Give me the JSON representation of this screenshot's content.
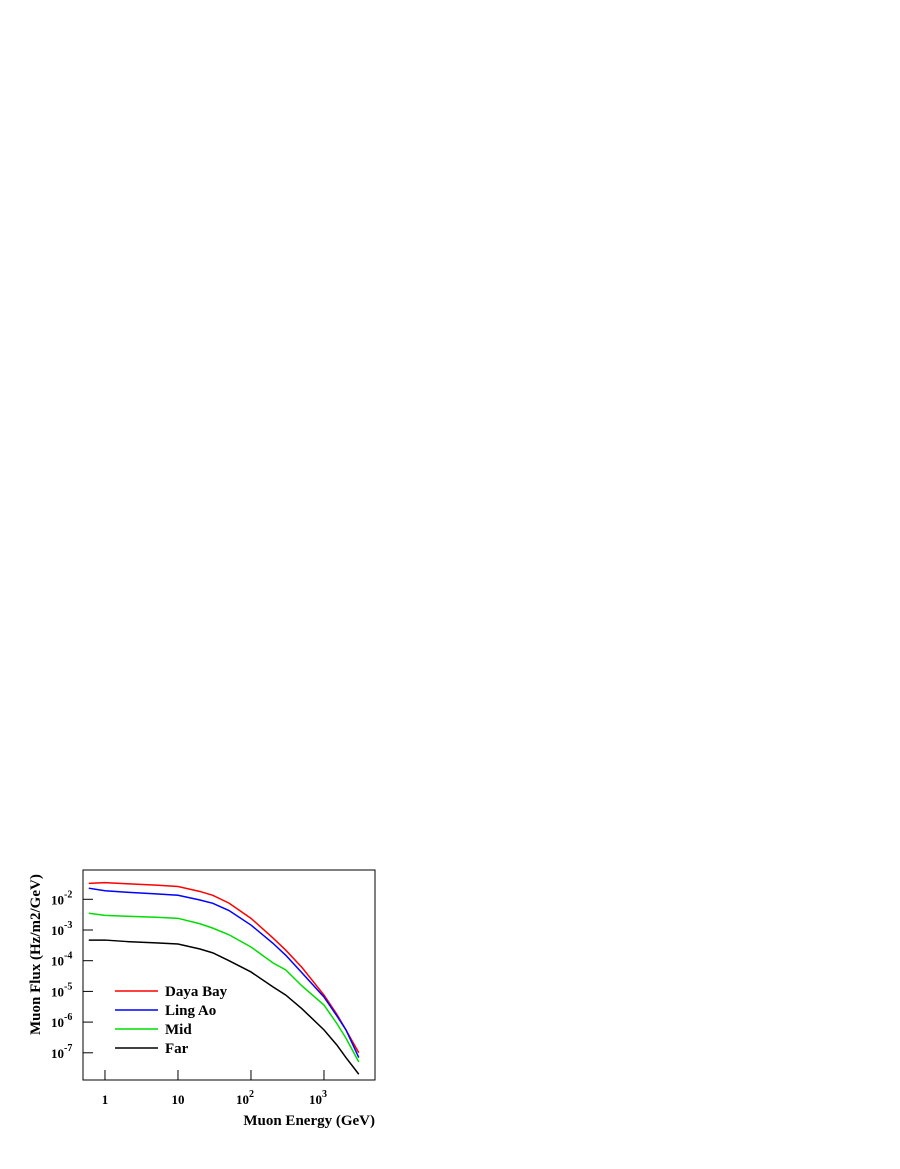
{
  "chart_data": {
    "type": "line",
    "x_label": "Muon Energy (GeV)",
    "y_label": "Muon Flux (Hz/m2/GeV)",
    "log_x": true,
    "log_y": true,
    "xlim": [
      0.5,
      5000
    ],
    "ylim": [
      1.3e-08,
      0.09
    ],
    "xticks": [
      1,
      10,
      {
        "value": 100,
        "label": "102"
      },
      {
        "value": 1000,
        "label": "103"
      }
    ],
    "yticks": [
      {
        "value": 0.01,
        "label": "10-2"
      },
      {
        "value": 0.001,
        "label": "10-3"
      },
      {
        "value": 0.0001,
        "label": "10-4"
      },
      {
        "value": 1e-05,
        "label": "10-5"
      },
      {
        "value": 1e-06,
        "label": "10-6"
      },
      {
        "value": 1e-07,
        "label": "10-7"
      }
    ],
    "legend": "bottom-left",
    "x": [
      0.6,
      1,
      2,
      5,
      10,
      20,
      30,
      50,
      100,
      200,
      300,
      500,
      1000,
      1500,
      2000,
      3000
    ],
    "series": [
      {
        "name": "Daya Bay",
        "color": "#ff0000",
        "values": [
          0.033,
          0.035,
          0.032,
          0.029,
          0.026,
          0.018,
          0.0135,
          0.0075,
          0.0024,
          0.00055,
          0.00022,
          6e-05,
          7.6e-06,
          1.8e-06,
          5.6e-07,
          1e-07
        ]
      },
      {
        "name": "Ling Ao",
        "color": "#0000ff",
        "values": [
          0.023,
          0.019,
          0.017,
          0.015,
          0.0135,
          0.0095,
          0.0074,
          0.0043,
          0.00145,
          0.00037,
          0.00015,
          4e-05,
          6.6e-06,
          1.6e-06,
          5.6e-07,
          7e-08
        ]
      },
      {
        "name": "Mid",
        "color": "#00dd00",
        "values": [
          0.0035,
          0.003,
          0.0028,
          0.0026,
          0.0024,
          0.0016,
          0.00115,
          0.0007,
          0.00028,
          8.5e-05,
          5e-05,
          1.5e-05,
          3.6e-06,
          9e-07,
          3e-07,
          5e-08
        ]
      },
      {
        "name": "Far",
        "color": "#000000",
        "values": [
          0.00047,
          0.00047,
          0.00042,
          0.00038,
          0.00035,
          0.00024,
          0.00018,
          0.0001,
          4.3e-05,
          1.4e-05,
          7.6e-06,
          2.7e-06,
          5.6e-07,
          1.8e-07,
          7e-08,
          2e-08
        ]
      }
    ]
  }
}
